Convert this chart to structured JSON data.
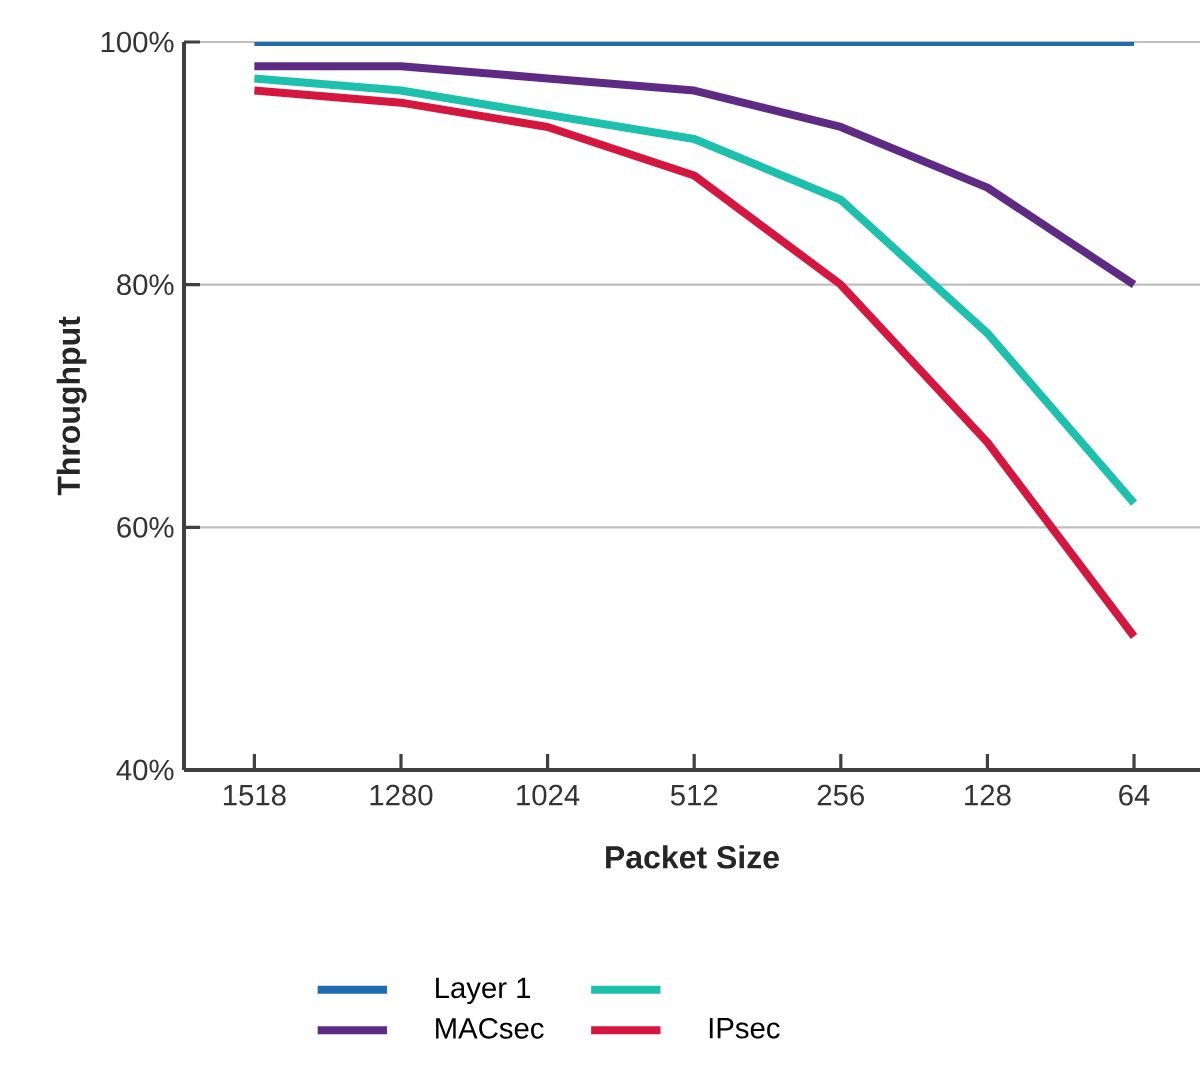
{
  "chart_data": {
    "type": "line",
    "xlabel": "Packet Size",
    "ylabel": "Throughput",
    "categories": [
      "1518",
      "1280",
      "1024",
      "512",
      "256",
      "128",
      "64"
    ],
    "ylim": [
      40,
      100
    ],
    "yticks": [
      {
        "value": 40,
        "label": "40%"
      },
      {
        "value": 60,
        "label": "60%"
      },
      {
        "value": 80,
        "label": "80%"
      },
      {
        "value": 100,
        "label": "100%"
      }
    ],
    "grid": "y",
    "legend": "bottom",
    "marker": "none",
    "line_style": "solid",
    "series": [
      {
        "name": "Layer 1",
        "color": "#1f6db0",
        "values": [
          100,
          100,
          100,
          100,
          100,
          100,
          100
        ]
      },
      {
        "name": "MACsec",
        "color": "#5f2a84",
        "values": [
          98,
          98,
          97,
          96,
          93,
          88,
          80
        ]
      },
      {
        "color": "#1cc0ad",
        "values": [
          97,
          96,
          94,
          92,
          87,
          76,
          62
        ]
      },
      {
        "name": "IPsec",
        "color": "#d5173f",
        "values": [
          96,
          95,
          93,
          89,
          80,
          67,
          51
        ]
      }
    ]
  }
}
